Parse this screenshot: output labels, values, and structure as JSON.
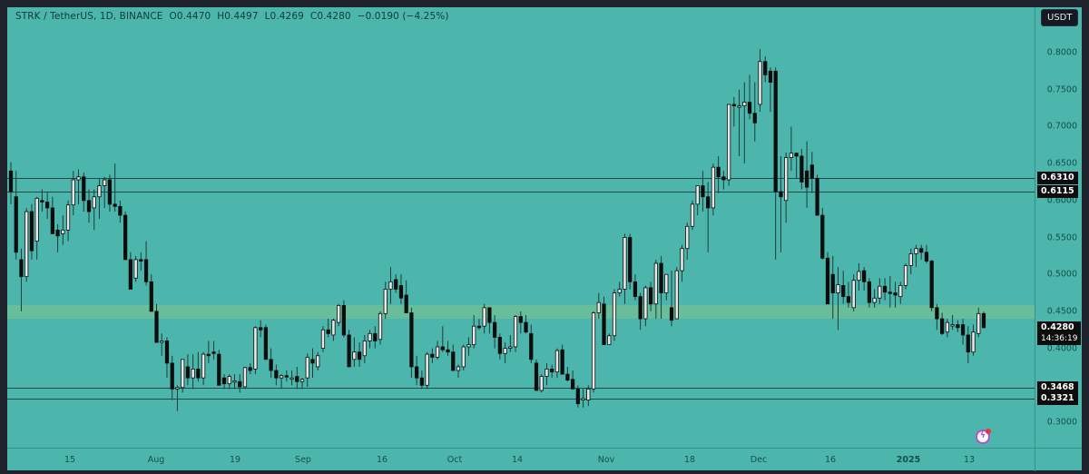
{
  "legend": {
    "symbol": "STRK / TetherUS, 1D, BINANCE",
    "open": "O0.4470",
    "high": "H0.4497",
    "low": "L0.4269",
    "close": "C0.4280",
    "change": "−0.0190 (−4.25%)"
  },
  "price_axis": {
    "currency": "USDT",
    "ticks": [
      "0.8000",
      "0.7500",
      "0.7000",
      "0.6500",
      "0.6000",
      "0.5500",
      "0.5000",
      "0.4500",
      "0.4000",
      "0.3000"
    ]
  },
  "time_axis": {
    "ticks": [
      "15",
      "Aug",
      "19",
      "Sep",
      "16",
      "Oct",
      "14",
      "Nov",
      "18",
      "Dec",
      "16",
      "2025",
      "13"
    ]
  },
  "levels": {
    "resistance_1": "0.6310",
    "resistance_2": "0.6115",
    "support_1": "0.3468",
    "support_2": "0.3321"
  },
  "last_price": {
    "value": "0.4280",
    "countdown": "14:36:19"
  },
  "colors": {
    "background": "#4db6ac",
    "frame": "#1e222d",
    "bull_candle": "#e8e8e8",
    "bear_candle": "#0d0d0d",
    "zone": "#6dbf97",
    "level_line": "#1d4a46"
  },
  "chart_data": {
    "type": "candlestick",
    "title": "STRK / TetherUS, 1D, BINANCE",
    "xlabel": "",
    "ylabel": "USDT",
    "ylim": [
      0.27,
      0.83
    ],
    "x_ticks": [
      "15",
      "Aug",
      "19",
      "Sep",
      "16",
      "Oct",
      "14",
      "Nov",
      "18",
      "Dec",
      "16",
      "2025",
      "13"
    ],
    "horizontal_levels": [
      0.631,
      0.6115,
      0.3468,
      0.3321
    ],
    "zone": {
      "from": 0.4395,
      "to": 0.4585
    },
    "last": {
      "open": 0.447,
      "high": 0.4497,
      "low": 0.4269,
      "close": 0.428,
      "change": -0.019,
      "change_pct": -4.25
    },
    "approx_path_note": "Daily OHLC approximated from pixel positions, ~Jul 3 2024 to Jan 16 2025",
    "ohlc": [
      [
        0.64,
        0.652,
        0.595,
        0.612
      ],
      [
        0.605,
        0.64,
        0.52,
        0.53
      ],
      [
        0.52,
        0.535,
        0.45,
        0.497
      ],
      [
        0.497,
        0.59,
        0.49,
        0.585
      ],
      [
        0.585,
        0.595,
        0.52,
        0.532
      ],
      [
        0.545,
        0.605,
        0.52,
        0.603
      ],
      [
        0.6,
        0.615,
        0.585,
        0.598
      ],
      [
        0.598,
        0.612,
        0.575,
        0.59
      ],
      [
        0.59,
        0.605,
        0.555,
        0.555
      ],
      [
        0.56,
        0.568,
        0.53,
        0.552
      ],
      [
        0.555,
        0.58,
        0.54,
        0.56
      ],
      [
        0.56,
        0.6,
        0.545,
        0.594
      ],
      [
        0.594,
        0.64,
        0.58,
        0.628
      ],
      [
        0.628,
        0.642,
        0.595,
        0.632
      ],
      [
        0.632,
        0.638,
        0.585,
        0.6
      ],
      [
        0.6,
        0.615,
        0.57,
        0.585
      ],
      [
        0.59,
        0.615,
        0.56,
        0.605
      ],
      [
        0.605,
        0.63,
        0.575,
        0.62
      ],
      [
        0.62,
        0.632,
        0.59,
        0.628
      ],
      [
        0.628,
        0.635,
        0.585,
        0.595
      ],
      [
        0.595,
        0.65,
        0.585,
        0.592
      ],
      [
        0.592,
        0.6,
        0.57,
        0.58
      ],
      [
        0.58,
        0.585,
        0.52,
        0.52
      ],
      [
        0.52,
        0.53,
        0.48,
        0.48
      ],
      [
        0.495,
        0.525,
        0.49,
        0.52
      ],
      [
        0.52,
        0.53,
        0.505,
        0.518
      ],
      [
        0.52,
        0.545,
        0.485,
        0.49
      ],
      [
        0.49,
        0.5,
        0.45,
        0.45
      ],
      [
        0.45,
        0.46,
        0.42,
        0.408
      ],
      [
        0.408,
        0.42,
        0.39,
        0.41
      ],
      [
        0.41,
        0.415,
        0.36,
        0.38
      ],
      [
        0.38,
        0.39,
        0.33,
        0.345
      ],
      [
        0.345,
        0.35,
        0.315,
        0.347
      ],
      [
        0.347,
        0.385,
        0.34,
        0.385
      ],
      [
        0.375,
        0.392,
        0.35,
        0.36
      ],
      [
        0.36,
        0.392,
        0.345,
        0.372
      ],
      [
        0.372,
        0.395,
        0.355,
        0.36
      ],
      [
        0.36,
        0.395,
        0.35,
        0.392
      ],
      [
        0.392,
        0.41,
        0.38,
        0.39
      ],
      [
        0.395,
        0.41,
        0.385,
        0.393
      ],
      [
        0.392,
        0.398,
        0.36,
        0.35
      ],
      [
        0.36,
        0.365,
        0.345,
        0.352
      ],
      [
        0.352,
        0.365,
        0.345,
        0.362
      ],
      [
        0.355,
        0.365,
        0.345,
        0.356
      ],
      [
        0.355,
        0.365,
        0.34,
        0.348
      ],
      [
        0.348,
        0.375,
        0.345,
        0.374
      ],
      [
        0.374,
        0.38,
        0.365,
        0.37
      ],
      [
        0.372,
        0.43,
        0.365,
        0.428
      ],
      [
        0.428,
        0.438,
        0.415,
        0.425
      ],
      [
        0.428,
        0.432,
        0.4,
        0.385
      ],
      [
        0.385,
        0.4,
        0.36,
        0.37
      ],
      [
        0.37,
        0.378,
        0.35,
        0.36
      ],
      [
        0.36,
        0.365,
        0.345,
        0.363
      ],
      [
        0.363,
        0.37,
        0.355,
        0.362
      ],
      [
        0.36,
        0.37,
        0.35,
        0.36
      ],
      [
        0.362,
        0.375,
        0.345,
        0.355
      ],
      [
        0.355,
        0.36,
        0.345,
        0.358
      ],
      [
        0.36,
        0.393,
        0.348,
        0.388
      ],
      [
        0.385,
        0.4,
        0.36,
        0.38
      ],
      [
        0.375,
        0.395,
        0.37,
        0.39
      ],
      [
        0.4,
        0.43,
        0.395,
        0.425
      ],
      [
        0.425,
        0.44,
        0.415,
        0.42
      ],
      [
        0.418,
        0.44,
        0.41,
        0.438
      ],
      [
        0.435,
        0.46,
        0.43,
        0.458
      ],
      [
        0.458,
        0.465,
        0.415,
        0.418
      ],
      [
        0.418,
        0.425,
        0.385,
        0.375
      ],
      [
        0.385,
        0.415,
        0.375,
        0.395
      ],
      [
        0.395,
        0.408,
        0.375,
        0.385
      ],
      [
        0.39,
        0.418,
        0.38,
        0.41
      ],
      [
        0.41,
        0.425,
        0.4,
        0.42
      ],
      [
        0.42,
        0.43,
        0.4,
        0.41
      ],
      [
        0.412,
        0.45,
        0.405,
        0.447
      ],
      [
        0.447,
        0.49,
        0.44,
        0.48
      ],
      [
        0.48,
        0.51,
        0.46,
        0.49
      ],
      [
        0.493,
        0.5,
        0.475,
        0.48
      ],
      [
        0.485,
        0.5,
        0.46,
        0.468
      ],
      [
        0.472,
        0.492,
        0.46,
        0.448
      ],
      [
        0.448,
        0.455,
        0.36,
        0.375
      ],
      [
        0.375,
        0.39,
        0.35,
        0.36
      ],
      [
        0.36,
        0.37,
        0.345,
        0.35
      ],
      [
        0.35,
        0.395,
        0.345,
        0.392
      ],
      [
        0.392,
        0.4,
        0.38,
        0.388
      ],
      [
        0.388,
        0.41,
        0.385,
        0.402
      ],
      [
        0.402,
        0.43,
        0.395,
        0.398
      ],
      [
        0.398,
        0.41,
        0.39,
        0.395
      ],
      [
        0.395,
        0.405,
        0.37,
        0.37
      ],
      [
        0.37,
        0.378,
        0.36,
        0.375
      ],
      [
        0.375,
        0.405,
        0.37,
        0.402
      ],
      [
        0.402,
        0.415,
        0.39,
        0.405
      ],
      [
        0.405,
        0.445,
        0.4,
        0.43
      ],
      [
        0.43,
        0.44,
        0.425,
        0.428
      ],
      [
        0.43,
        0.46,
        0.42,
        0.455
      ],
      [
        0.455,
        0.455,
        0.42,
        0.435
      ],
      [
        0.435,
        0.445,
        0.4,
        0.415
      ],
      [
        0.415,
        0.42,
        0.385,
        0.393
      ],
      [
        0.393,
        0.408,
        0.38,
        0.4
      ],
      [
        0.4,
        0.418,
        0.395,
        0.402
      ],
      [
        0.402,
        0.445,
        0.395,
        0.443
      ],
      [
        0.443,
        0.45,
        0.42,
        0.435
      ],
      [
        0.435,
        0.445,
        0.42,
        0.422
      ],
      [
        0.42,
        0.432,
        0.38,
        0.385
      ],
      [
        0.38,
        0.385,
        0.345,
        0.343
      ],
      [
        0.343,
        0.365,
        0.34,
        0.362
      ],
      [
        0.362,
        0.38,
        0.35,
        0.372
      ],
      [
        0.372,
        0.378,
        0.36,
        0.368
      ],
      [
        0.368,
        0.4,
        0.36,
        0.397
      ],
      [
        0.398,
        0.405,
        0.37,
        0.365
      ],
      [
        0.365,
        0.375,
        0.355,
        0.357
      ],
      [
        0.358,
        0.37,
        0.345,
        0.345
      ],
      [
        0.345,
        0.35,
        0.32,
        0.325
      ],
      [
        0.33,
        0.345,
        0.32,
        0.332
      ],
      [
        0.33,
        0.35,
        0.322,
        0.345
      ],
      [
        0.345,
        0.45,
        0.34,
        0.448
      ],
      [
        0.448,
        0.475,
        0.44,
        0.462
      ],
      [
        0.46,
        0.47,
        0.415,
        0.405
      ],
      [
        0.405,
        0.42,
        0.405,
        0.417
      ],
      [
        0.417,
        0.48,
        0.41,
        0.475
      ],
      [
        0.475,
        0.49,
        0.47,
        0.48
      ],
      [
        0.48,
        0.555,
        0.46,
        0.55
      ],
      [
        0.55,
        0.555,
        0.48,
        0.49
      ],
      [
        0.49,
        0.5,
        0.465,
        0.47
      ],
      [
        0.47,
        0.475,
        0.425,
        0.44
      ],
      [
        0.44,
        0.485,
        0.43,
        0.482
      ],
      [
        0.482,
        0.49,
        0.45,
        0.46
      ],
      [
        0.46,
        0.52,
        0.44,
        0.515
      ],
      [
        0.515,
        0.525,
        0.44,
        0.475
      ],
      [
        0.475,
        0.5,
        0.465,
        0.5
      ],
      [
        0.455,
        0.505,
        0.43,
        0.438
      ],
      [
        0.44,
        0.51,
        0.44,
        0.505
      ],
      [
        0.505,
        0.54,
        0.49,
        0.535
      ],
      [
        0.535,
        0.57,
        0.52,
        0.565
      ],
      [
        0.565,
        0.6,
        0.56,
        0.595
      ],
      [
        0.595,
        0.62,
        0.58,
        0.62
      ],
      [
        0.62,
        0.64,
        0.585,
        0.605
      ],
      [
        0.605,
        0.625,
        0.53,
        0.59
      ],
      [
        0.59,
        0.65,
        0.58,
        0.645
      ],
      [
        0.645,
        0.66,
        0.61,
        0.632
      ],
      [
        0.632,
        0.64,
        0.615,
        0.628
      ],
      [
        0.628,
        0.73,
        0.62,
        0.73
      ],
      [
        0.73,
        0.74,
        0.7,
        0.728
      ],
      [
        0.728,
        0.75,
        0.66,
        0.728
      ],
      [
        0.728,
        0.76,
        0.65,
        0.733
      ],
      [
        0.733,
        0.77,
        0.71,
        0.718
      ],
      [
        0.718,
        0.76,
        0.68,
        0.705
      ],
      [
        0.73,
        0.805,
        0.72,
        0.788
      ],
      [
        0.788,
        0.795,
        0.76,
        0.77
      ],
      [
        0.775,
        0.78,
        0.72,
        0.76
      ],
      [
        0.775,
        0.78,
        0.52,
        0.612
      ],
      [
        0.612,
        0.66,
        0.53,
        0.605
      ],
      [
        0.6,
        0.665,
        0.57,
        0.658
      ],
      [
        0.658,
        0.7,
        0.64,
        0.664
      ],
      [
        0.664,
        0.665,
        0.63,
        0.66
      ],
      [
        0.66,
        0.67,
        0.615,
        0.625
      ],
      [
        0.64,
        0.68,
        0.59,
        0.618
      ],
      [
        0.648,
        0.666,
        0.61,
        0.63
      ],
      [
        0.63,
        0.635,
        0.6,
        0.58
      ],
      [
        0.58,
        0.59,
        0.52,
        0.522
      ],
      [
        0.522,
        0.53,
        0.46,
        0.46
      ],
      [
        0.5,
        0.525,
        0.44,
        0.475
      ],
      [
        0.475,
        0.51,
        0.425,
        0.486
      ],
      [
        0.485,
        0.505,
        0.46,
        0.47
      ],
      [
        0.47,
        0.49,
        0.455,
        0.462
      ],
      [
        0.455,
        0.5,
        0.45,
        0.492
      ],
      [
        0.492,
        0.515,
        0.478,
        0.504
      ],
      [
        0.505,
        0.51,
        0.478,
        0.49
      ],
      [
        0.49,
        0.495,
        0.455,
        0.462
      ],
      [
        0.462,
        0.48,
        0.455,
        0.468
      ],
      [
        0.468,
        0.495,
        0.46,
        0.484
      ],
      [
        0.484,
        0.495,
        0.465,
        0.476
      ],
      [
        0.476,
        0.498,
        0.455,
        0.475
      ],
      [
        0.475,
        0.49,
        0.455,
        0.472
      ],
      [
        0.47,
        0.49,
        0.46,
        0.485
      ],
      [
        0.485,
        0.515,
        0.48,
        0.512
      ],
      [
        0.512,
        0.535,
        0.5,
        0.528
      ],
      [
        0.528,
        0.54,
        0.51,
        0.535
      ],
      [
        0.535,
        0.54,
        0.52,
        0.53
      ],
      [
        0.53,
        0.54,
        0.515,
        0.518
      ],
      [
        0.518,
        0.52,
        0.45,
        0.455
      ],
      [
        0.455,
        0.46,
        0.425,
        0.44
      ],
      [
        0.44,
        0.448,
        0.418,
        0.42
      ],
      [
        0.422,
        0.44,
        0.415,
        0.435
      ],
      [
        0.432,
        0.445,
        0.425,
        0.432
      ],
      [
        0.432,
        0.438,
        0.422,
        0.428
      ],
      [
        0.432,
        0.44,
        0.405,
        0.418
      ],
      [
        0.418,
        0.43,
        0.38,
        0.395
      ],
      [
        0.395,
        0.432,
        0.39,
        0.422
      ],
      [
        0.42,
        0.455,
        0.415,
        0.447
      ],
      [
        0.447,
        0.4497,
        0.4269,
        0.428
      ]
    ]
  }
}
